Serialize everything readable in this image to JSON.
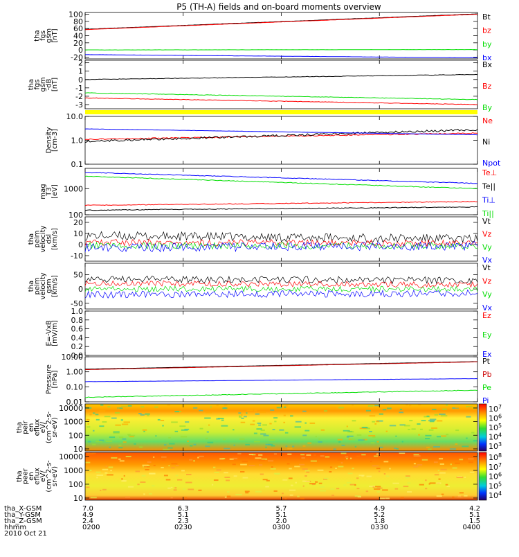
{
  "title": "P5 (TH-A) fields and on-board moments overview",
  "chart_data": [
    {
      "type": "line",
      "panel": "fgs-gsm-nT",
      "ylabel_lines": [
        "tha",
        "fgs",
        "gsm",
        "[nT]"
      ],
      "ytick_labels": [
        "100",
        "80",
        "60",
        "40",
        "20",
        "0",
        "-20"
      ],
      "ylim": [
        -25,
        105
      ],
      "x_start": "0200",
      "x_end": "0400",
      "series": [
        {
          "name": "Bt",
          "color": "#000000",
          "start": 58,
          "end": 101,
          "noise": 0.3
        },
        {
          "name": "bz",
          "color": "#ff0000",
          "start": 57,
          "end": 100,
          "noise": 0.3
        },
        {
          "name": "by",
          "color": "#00dd00",
          "start": 0,
          "end": 1,
          "noise": 0.2
        },
        {
          "name": "bx",
          "color": "#0000ff",
          "start": -13,
          "end": -22,
          "noise": 0.2
        }
      ]
    },
    {
      "type": "line",
      "panel": "fgs-gsm-dB",
      "ylabel_lines": [
        "tha",
        "fgs",
        "gsm",
        "-dB",
        "[nT]"
      ],
      "ytick_labels": [
        "2",
        "1",
        "0",
        "-1",
        "-2",
        "-3"
      ],
      "ylim": [
        -3.5,
        2.3
      ],
      "x_start": "0200",
      "x_end": "0400",
      "series": [
        {
          "name": "Bx",
          "color": "#000000",
          "start": 0.0,
          "end": 0.6,
          "noise": 0.03
        },
        {
          "name": "Bz",
          "color": "#ff0000",
          "start": -2.2,
          "end": -3.0,
          "noise": 0.03
        },
        {
          "name": "By",
          "color": "#00dd00",
          "start": -1.6,
          "end": -2.4,
          "noise": 0.03
        }
      ],
      "flag_bar_color": "#ffff00"
    },
    {
      "type": "line",
      "panel": "density",
      "ylabel_lines": [
        "Density",
        "[cm-3]"
      ],
      "ytick_labels": [
        "10.0",
        "1.0",
        "0.1"
      ],
      "log_scale": true,
      "ylim": [
        0.1,
        10
      ],
      "x_start": "0200",
      "x_end": "0400",
      "series": [
        {
          "name": "Ne",
          "color": "#ff0000",
          "start": 1.1,
          "end": 2.0,
          "noise": 0.05
        },
        {
          "name": "Ni",
          "color": "#000000",
          "start": 0.9,
          "end": 2.8,
          "noise": 0.1
        },
        {
          "name": "Npot",
          "color": "#0000ff",
          "start": 3.0,
          "end": 1.7,
          "noise": 0.01
        }
      ]
    },
    {
      "type": "line",
      "panel": "temperature",
      "ylabel_lines": [
        "mag",
        "T3",
        "[eV]"
      ],
      "ytick_labels": [
        "1000",
        "100"
      ],
      "log_scale": true,
      "ylim": [
        100,
        6000
      ],
      "x_start": "0200",
      "x_end": "0400",
      "series": [
        {
          "name": "Te⊥",
          "color": "#ff0000",
          "start": 230,
          "end": 320,
          "noise": 0.03
        },
        {
          "name": "Te||",
          "color": "#000000",
          "start": 150,
          "end": 200,
          "noise": 0.03
        },
        {
          "name": "Ti⊥",
          "color": "#0000ff",
          "start": 4200,
          "end": 1600,
          "noise": 0.03
        },
        {
          "name": "Ti||",
          "color": "#00dd00",
          "start": 3000,
          "end": 1000,
          "noise": 0.03
        }
      ]
    },
    {
      "type": "line",
      "panel": "peim-velocity-dsl",
      "ylabel_lines": [
        "tha",
        "peim",
        "velocity",
        "dsl",
        "[km/s]"
      ],
      "ytick_labels": [
        "20",
        "10",
        "0",
        "-10"
      ],
      "ylim": [
        -15,
        25
      ],
      "x_start": "0200",
      "x_end": "0400",
      "series": [
        {
          "name": "Vt",
          "color": "#000000",
          "start": 8,
          "end": 5,
          "noise": 4
        },
        {
          "name": "Vz",
          "color": "#ff0000",
          "start": 2,
          "end": 1,
          "noise": 3
        },
        {
          "name": "Vy",
          "color": "#00dd00",
          "start": -1,
          "end": -1,
          "noise": 3
        },
        {
          "name": "Vx",
          "color": "#0000ff",
          "start": -3,
          "end": -1,
          "noise": 4
        }
      ]
    },
    {
      "type": "line",
      "panel": "peim-velocity-gsm",
      "ylabel_lines": [
        "tha",
        "peim",
        "velocity",
        "gsm",
        "[km/s]"
      ],
      "ytick_labels": [
        "50",
        "0",
        "-50"
      ],
      "ylim": [
        -70,
        90
      ],
      "x_start": "0200",
      "x_end": "0400",
      "series": [
        {
          "name": "Vt",
          "color": "#000000",
          "start": 35,
          "end": 30,
          "noise": 12
        },
        {
          "name": "Vz",
          "color": "#ff0000",
          "start": 20,
          "end": 15,
          "noise": 10
        },
        {
          "name": "Vy",
          "color": "#00dd00",
          "start": 0,
          "end": 0,
          "noise": 10
        },
        {
          "name": "Vx",
          "color": "#0000ff",
          "start": -20,
          "end": -15,
          "noise": 12
        }
      ]
    },
    {
      "type": "line",
      "panel": "efield",
      "ylabel_lines": [
        "E=-VxB",
        "[mV/m]"
      ],
      "ytick_labels": [
        "1.0",
        "0.8",
        "0.6",
        "0.4",
        "0.2",
        "0.0"
      ],
      "ylim": [
        0,
        1
      ],
      "x_start": "0200",
      "x_end": "0400",
      "series": [
        {
          "name": "Ez",
          "color": "#ff0000",
          "start": null,
          "end": null,
          "noise": 0
        },
        {
          "name": "Ey",
          "color": "#00dd00",
          "start": null,
          "end": null,
          "noise": 0
        },
        {
          "name": "Ex",
          "color": "#0000ff",
          "start": null,
          "end": null,
          "noise": 0
        }
      ]
    },
    {
      "type": "line",
      "panel": "pressure",
      "ylabel_lines": [
        "Pressure",
        "[nPa]"
      ],
      "ytick_labels": [
        "10.00",
        "1.00",
        "0.10",
        "0.01"
      ],
      "log_scale": true,
      "ylim": [
        0.01,
        10
      ],
      "x_start": "0200",
      "x_end": "0400",
      "series": [
        {
          "name": "Pt",
          "color": "#000000",
          "start": 1.5,
          "end": 4.8,
          "noise": 0.01
        },
        {
          "name": "Pb",
          "color": "#cc0000",
          "start": 1.4,
          "end": 4.6,
          "noise": 0.01
        },
        {
          "name": "Pe",
          "color": "#00dd00",
          "start": 0.02,
          "end": 0.06,
          "noise": 0.05
        },
        {
          "name": "Pi",
          "color": "#0000ff",
          "start": 0.22,
          "end": 0.35,
          "noise": 0.01
        }
      ]
    },
    {
      "type": "heatmap",
      "panel": "peir-en-eflux",
      "ylabel_lines": [
        "tha",
        "peir",
        "en",
        "eflux",
        "eV/",
        "(cm^2-s-",
        "sr-eV)"
      ],
      "ytick_labels": [
        "10000",
        "1000",
        "100",
        "10"
      ],
      "log_scale": true,
      "ylim": [
        7,
        20000
      ],
      "colorbar_labels": [
        "10^7",
        "10^6",
        "10^5",
        "10^4",
        "10^3"
      ],
      "x_start": "0200",
      "x_end": "0400"
    },
    {
      "type": "heatmap",
      "panel": "peer-en-eflux",
      "ylabel_lines": [
        "tha",
        "peer",
        "en",
        "eflux",
        "eV/",
        "(cm^2-s-",
        "sr-eV)"
      ],
      "ytick_labels": [
        "10000",
        "1000",
        "100",
        "10"
      ],
      "log_scale": true,
      "ylim": [
        7,
        20000
      ],
      "colorbar_labels": [
        "10^8",
        "10^7",
        "10^6",
        "10^5",
        "10^4"
      ],
      "x_start": "0200",
      "x_end": "0400"
    }
  ],
  "x_axis": {
    "row_labels": [
      "tha_X-GSM",
      "tha_Y-GSM",
      "tha_Z-GSM",
      "hhmm",
      "2010 Oct 21"
    ],
    "ticks": [
      {
        "x_gsm": "7.0",
        "y_gsm": "4.9",
        "z_gsm": "2.4",
        "hhmm": "0200"
      },
      {
        "x_gsm": "6.3",
        "y_gsm": "5.1",
        "z_gsm": "2.3",
        "hhmm": "0230"
      },
      {
        "x_gsm": "5.7",
        "y_gsm": "5.1",
        "z_gsm": "2.0",
        "hhmm": "0300"
      },
      {
        "x_gsm": "4.9",
        "y_gsm": "5.2",
        "z_gsm": "1.8",
        "hhmm": "0330"
      },
      {
        "x_gsm": "4.2",
        "y_gsm": "5.1",
        "z_gsm": "1.5",
        "hhmm": "0400"
      }
    ]
  }
}
